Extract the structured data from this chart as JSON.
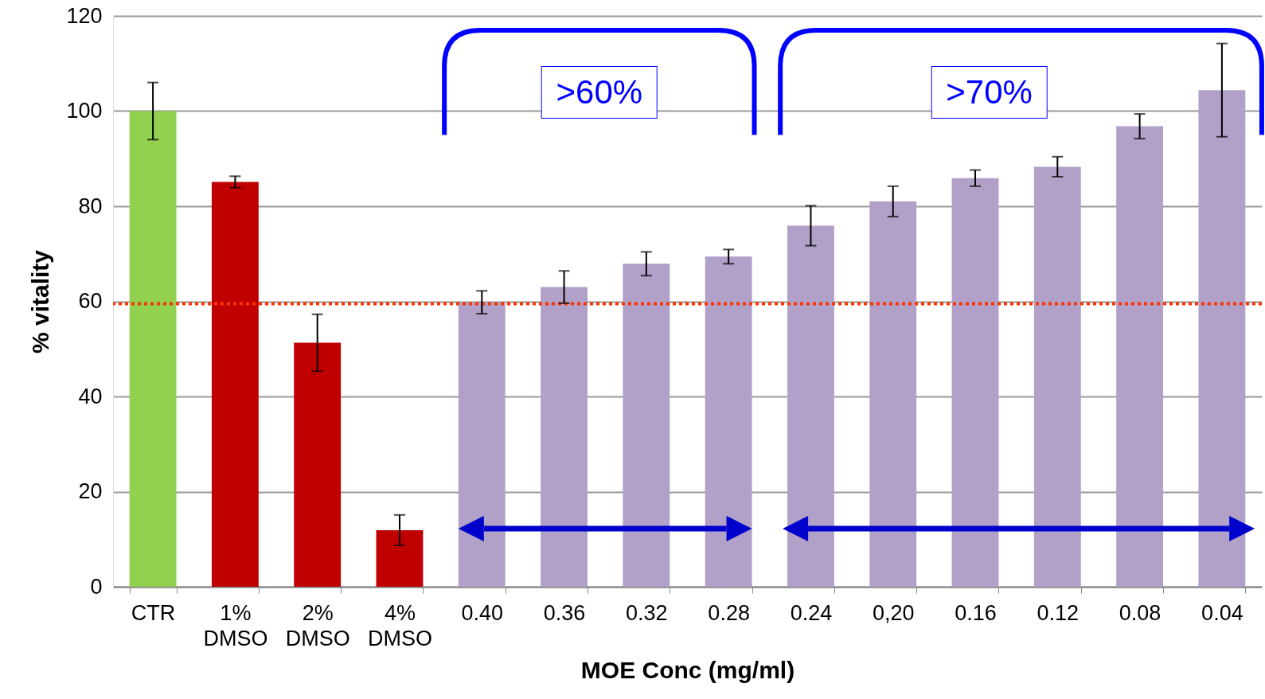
{
  "chart_data": {
    "type": "bar",
    "xlabel": "MOE Conc (mg/ml)",
    "ylabel": "% vitality",
    "categories": [
      "CTR",
      "1% DMSO",
      "2% DMSO",
      "4% DMSO",
      "0.40",
      "0.36",
      "0.32",
      "0.28",
      "0.24",
      "0,20",
      "0.16",
      "0.12",
      "0.08",
      "0.04"
    ],
    "values": [
      100,
      85.1,
      51.3,
      11.9,
      59.8,
      63.0,
      67.9,
      69.4,
      75.9,
      81.0,
      85.9,
      88.3,
      96.8,
      104.4
    ],
    "errors": [
      6,
      1.2,
      6,
      3.2,
      2.4,
      3.4,
      2.5,
      1.5,
      4.2,
      3.2,
      1.7,
      2.1,
      2.6,
      9.8
    ],
    "colors": [
      "#92d050",
      "#c00000",
      "#c00000",
      "#c00000",
      "#b1a0c7",
      "#b1a0c7",
      "#b1a0c7",
      "#b1a0c7",
      "#b1a0c7",
      "#b1a0c7",
      "#b1a0c7",
      "#b1a0c7",
      "#b1a0c7",
      "#b1a0c7"
    ],
    "ylim": [
      0,
      120
    ],
    "yticks": [
      0,
      20,
      40,
      60,
      80,
      100,
      120
    ],
    "grid": "y",
    "ref_lines": [
      {
        "axis": "y",
        "value": 59.5,
        "color": "#ff3300",
        "line_style": "dotted"
      }
    ],
    "annotations": [
      ">60%",
      ">70%"
    ]
  }
}
